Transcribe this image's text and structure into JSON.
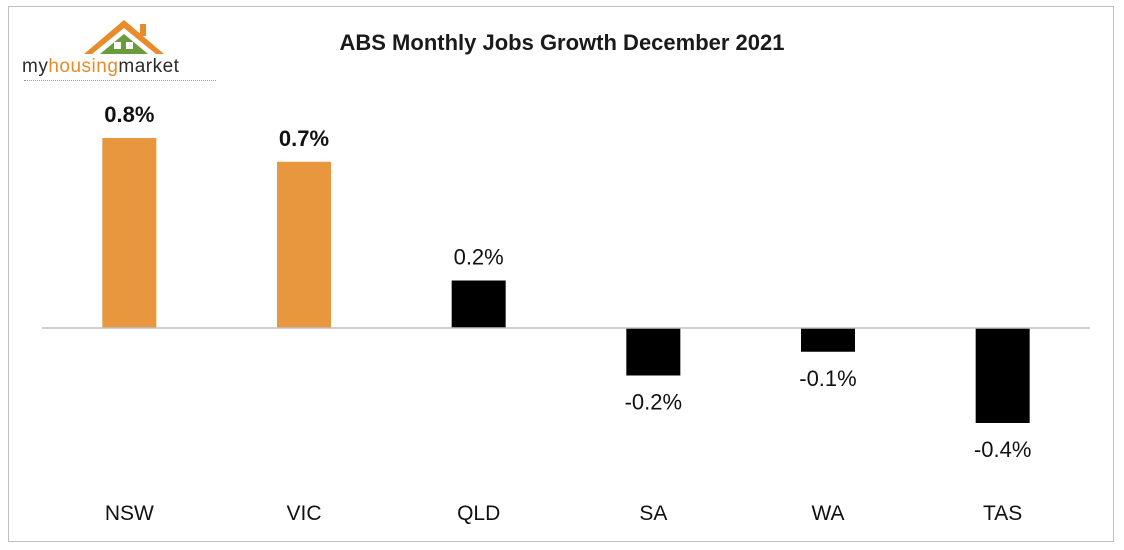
{
  "logo": {
    "part1": "my",
    "part2": "housing",
    "part3": "market"
  },
  "chart_data": {
    "type": "bar",
    "title": "ABS Monthly Jobs Growth December 2021",
    "categories": [
      "NSW",
      "VIC",
      "QLD",
      "SA",
      "WA",
      "TAS"
    ],
    "values": [
      0.8,
      0.7,
      0.2,
      -0.2,
      -0.1,
      -0.4
    ],
    "labels": [
      "0.8%",
      "0.7%",
      "0.2%",
      "-0.2%",
      "-0.1%",
      "-0.4%"
    ],
    "highlight": [
      true,
      true,
      false,
      false,
      false,
      false
    ],
    "colors": {
      "highlight": "#E8973E",
      "default": "#000000",
      "axis": "#bfbfbf"
    },
    "xlabel": "",
    "ylabel": "",
    "ylim": [
      -0.4,
      0.8
    ],
    "grid": false
  }
}
